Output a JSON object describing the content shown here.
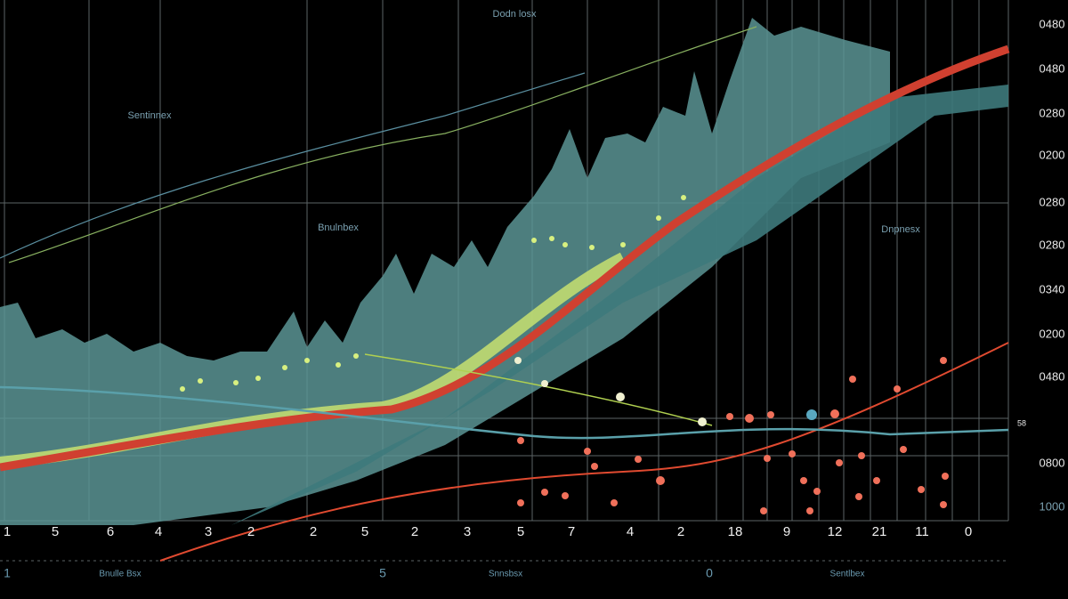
{
  "annotations": [
    "Dodn losx",
    "Sentinnex",
    "Bnulnbex",
    "Dnpnesx"
  ],
  "right_labels": [
    "0480",
    "0480",
    "0280",
    "0200",
    "0280",
    "0280",
    "0340",
    "0200",
    "0480",
    "58",
    "0800",
    "1000"
  ],
  "bottom_labels": [
    "1",
    "5",
    "6",
    "4",
    "3",
    "2",
    "2",
    "5",
    "2",
    "3",
    "5",
    "7",
    "4",
    "2",
    "18",
    "9",
    "12",
    "21",
    "11",
    "0"
  ],
  "footer_labels": [
    "1",
    "Bnulle Bsx",
    "5",
    "Snnsbsx",
    "0",
    "Sentlbex"
  ]
}
